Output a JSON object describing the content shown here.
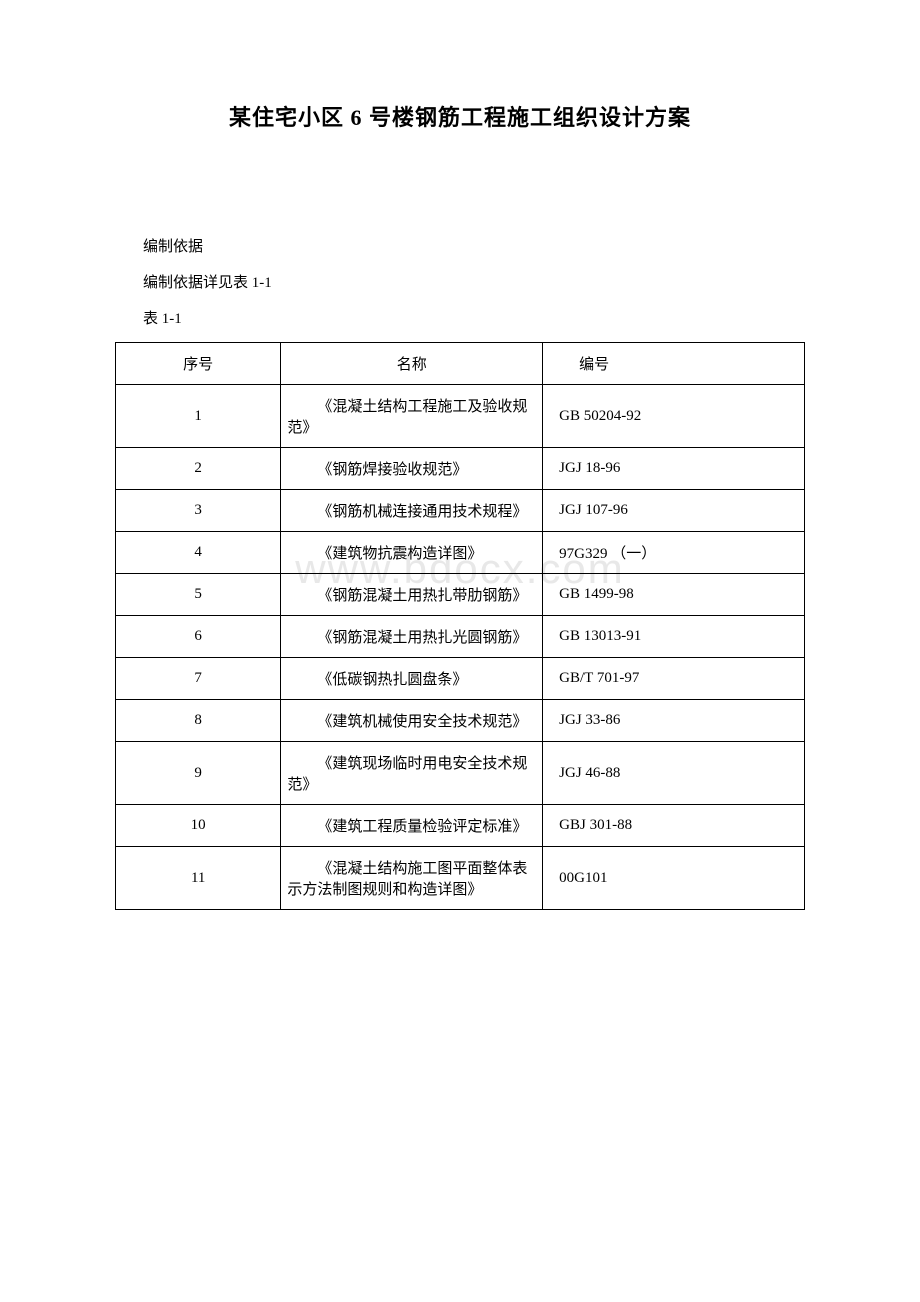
{
  "title": "某住宅小区 6 号楼钢筋工程施工组织设计方案",
  "intro_line1": "编制依据",
  "intro_line2": "编制依据详见表 1-1",
  "table_label": "表 1-1",
  "watermark": "www.bdocx.com",
  "table": {
    "headers": {
      "seq": "序号",
      "name": "名称",
      "code": "编号"
    },
    "rows": [
      {
        "seq": "1",
        "name": "《混凝土结构工程施工及验收规范》",
        "code": "GB 50204-92"
      },
      {
        "seq": "2",
        "name": "《钢筋焊接验收规范》",
        "code": "JGJ 18-96"
      },
      {
        "seq": "3",
        "name": "《钢筋机械连接通用技术规程》",
        "code": "JGJ 107-96"
      },
      {
        "seq": "4",
        "name": "《建筑物抗震构造详图》",
        "code": "97G329 （一）"
      },
      {
        "seq": "5",
        "name": "《钢筋混凝土用热扎带肋钢筋》",
        "code": "GB 1499-98"
      },
      {
        "seq": "6",
        "name": "《钢筋混凝土用热扎光圆钢筋》",
        "code": "GB 13013-91"
      },
      {
        "seq": "7",
        "name": "《低碳钢热扎圆盘条》",
        "code": "GB/T 701-97"
      },
      {
        "seq": "8",
        "name": "《建筑机械使用安全技术规范》",
        "code": "JGJ 33-86"
      },
      {
        "seq": "9",
        "name": "《建筑现场临时用电安全技术规范》",
        "code": "JGJ 46-88"
      },
      {
        "seq": "10",
        "name": "《建筑工程质量检验评定标准》",
        "code": "GBJ 301-88"
      },
      {
        "seq": "11",
        "name": "《混凝土结构施工图平面整体表示方法制图规则和构造详图》",
        "code": "00G101"
      }
    ]
  },
  "colors": {
    "background": "#ffffff",
    "text": "#000000",
    "border": "#000000",
    "watermark": "#e8e8e8"
  }
}
